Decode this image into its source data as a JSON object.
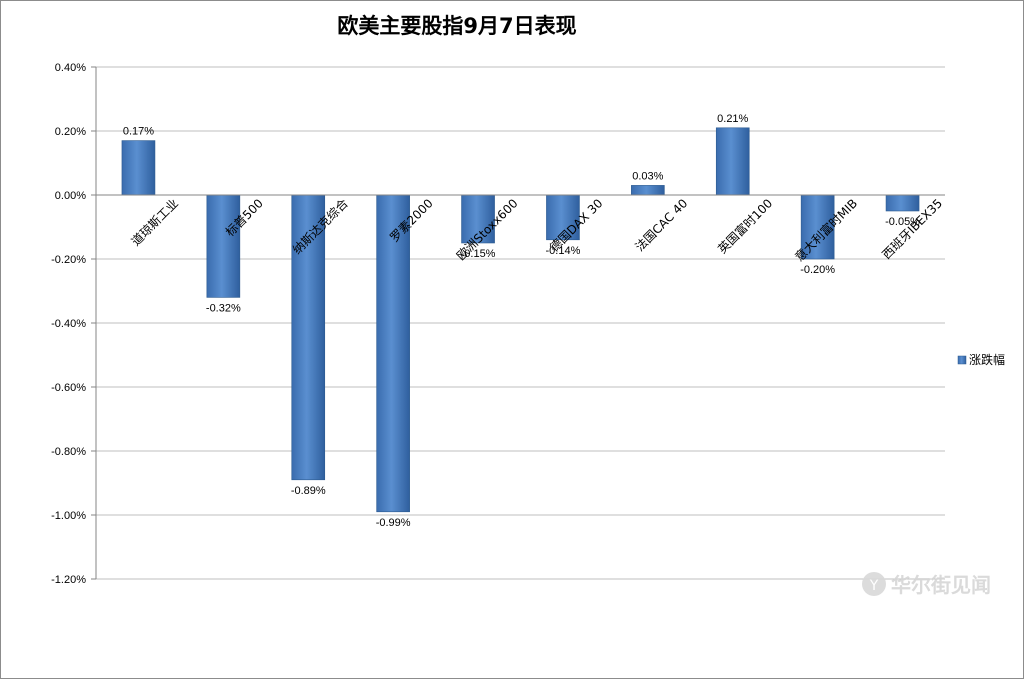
{
  "chart_data": {
    "type": "bar",
    "title": "欧美主要股指9月7日表现",
    "categories": [
      "道琼斯工业",
      "标普500",
      "纳斯达克综合",
      "罗素2000",
      "欧洲Stoxx600",
      "德国DAX 30",
      "法国CAC 40",
      "英国富时100",
      "意大利富时MIB",
      "西班牙IBEX35"
    ],
    "series": [
      {
        "name": "涨跌幅",
        "values": [
          0.17,
          -0.32,
          -0.89,
          -0.99,
          -0.15,
          -0.14,
          0.03,
          0.21,
          -0.2,
          -0.05
        ],
        "labels": [
          "0.17%",
          "-0.32%",
          "-0.89%",
          "-0.99%",
          "-0.15%",
          "-0.14%",
          "0.03%",
          "0.21%",
          "-0.20%",
          "-0.05%"
        ]
      }
    ],
    "ylim": [
      -1.2,
      0.4
    ],
    "yticks": [
      0.4,
      0.2,
      0.0,
      -0.2,
      -0.4,
      -0.6,
      -0.8,
      -1.0,
      -1.2
    ],
    "ytick_labels": [
      "0.40%",
      "0.20%",
      "0.00%",
      "-0.20%",
      "-0.40%",
      "-0.60%",
      "-0.80%",
      "-1.00%",
      "-1.20%"
    ],
    "xlabel": "",
    "ylabel": "",
    "grid": true,
    "legend_position": "right",
    "colors": {
      "bar": "#4a7ebb",
      "bar_edge": "#2c5a8f",
      "grid": "#bfbfbf",
      "axis": "#868686"
    }
  },
  "watermark": {
    "text": "华尔街见闻",
    "icon": "wallstreetcn-logo-icon"
  }
}
